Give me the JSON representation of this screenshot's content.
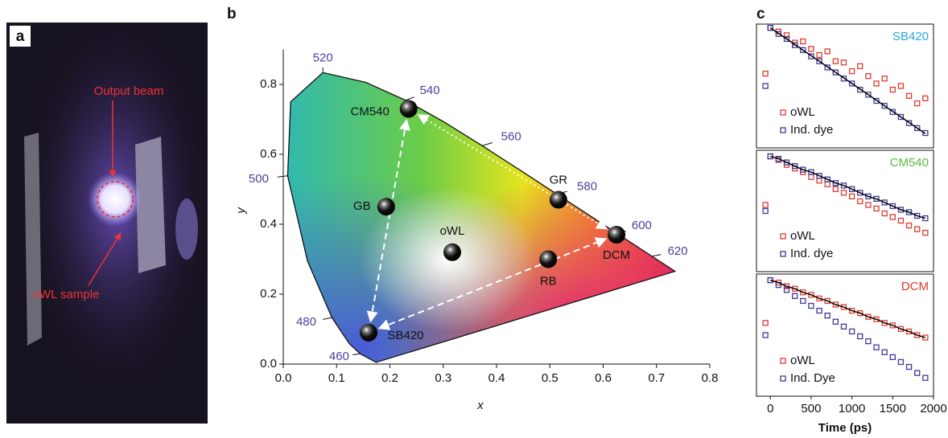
{
  "photo": {
    "panel_label": "a",
    "annotations": [
      "Output beam",
      "oWL sample"
    ]
  },
  "chart_data": [
    {
      "type": "scatter",
      "panel_label": "b",
      "xlabel": "x",
      "ylabel": "y",
      "xlim": [
        0,
        0.8
      ],
      "ylim": [
        0,
        0.9
      ],
      "xticks": [
        {
          "value": 0,
          "label": "0.0"
        },
        0.1,
        0.2,
        0.3,
        0.4,
        0.5,
        0.6,
        0.7,
        0.8
      ],
      "yticks": [
        {
          "value": 0,
          "label": "0.0"
        },
        0.2,
        0.4,
        0.6,
        0.8
      ],
      "labels": [
        "CM540",
        "GB",
        "oWL",
        "GR",
        "DCM",
        "RB",
        "SB420"
      ],
      "x": [
        0.235,
        0.193,
        0.317,
        0.516,
        0.625,
        0.497,
        0.16
      ],
      "y": [
        0.73,
        0.45,
        0.32,
        0.47,
        0.37,
        0.3,
        0.09
      ],
      "locus": {
        "x": [
          0.1741,
          0.144,
          0.1241,
          0.0913,
          0.0454,
          0.0082,
          0.0139,
          0.0743,
          0.1547,
          0.2296,
          0.3016,
          0.3731,
          0.4441,
          0.5125,
          0.5752,
          0.627,
          0.6915,
          0.7347
        ],
        "y": [
          0.005,
          0.0297,
          0.0578,
          0.1327,
          0.295,
          0.5384,
          0.7502,
          0.8338,
          0.8059,
          0.7543,
          0.6923,
          0.6245,
          0.5547,
          0.4866,
          0.4242,
          0.3725,
          0.3083,
          0.2653
        ]
      },
      "wavelengths": {
        "labels": [
          460,
          480,
          500,
          520,
          540,
          560,
          580,
          600,
          620
        ],
        "x": [
          0.144,
          0.0913,
          0.0082,
          0.0743,
          0.2296,
          0.3731,
          0.5125,
          0.627,
          0.6915
        ],
        "y": [
          0.0297,
          0.1327,
          0.5384,
          0.8338,
          0.7543,
          0.6245,
          0.4866,
          0.3725,
          0.3083
        ]
      }
    },
    {
      "type": "decay",
      "panel_label": "c",
      "label": "SB420",
      "label_color": "#29a9df",
      "xlim": [
        -170,
        2000
      ],
      "ylim": [
        0,
        1
      ],
      "x": [
        -60,
        0,
        100,
        200,
        300,
        400,
        500,
        600,
        700,
        800,
        900,
        1000,
        1100,
        1200,
        1300,
        1400,
        1500,
        1600,
        1700,
        1800,
        1900
      ],
      "series": [
        {
          "name": "oWL",
          "color": "#e03a2f",
          "values": [
            0.6,
            0.97,
            0.94,
            0.91,
            0.85,
            0.86,
            0.8,
            0.75,
            0.78,
            0.7,
            0.69,
            0.62,
            0.66,
            0.58,
            0.52,
            0.56,
            0.47,
            0.5,
            0.42,
            0.36,
            0.4
          ]
        },
        {
          "name": "Ind. dye",
          "color": "#3b3a9a",
          "values": [
            0.5,
            0.97,
            0.92,
            0.88,
            0.83,
            0.79,
            0.74,
            0.7,
            0.65,
            0.61,
            0.56,
            0.52,
            0.47,
            0.43,
            0.38,
            0.34,
            0.29,
            0.25,
            0.2,
            0.16,
            0.12
          ]
        },
        {
          "color": "#000000",
          "values": [
            null,
            0.97,
            0.925,
            0.88,
            0.835,
            0.79,
            0.745,
            0.7,
            0.655,
            0.61,
            0.565,
            0.52,
            0.475,
            0.43,
            0.385,
            0.34,
            0.295,
            0.25,
            0.205,
            0.16,
            0.115
          ]
        }
      ]
    },
    {
      "type": "decay",
      "label": "CM540",
      "label_color": "#5db946",
      "xlim": [
        -170,
        2000
      ],
      "ylim": [
        0,
        1
      ],
      "x": [
        -60,
        0,
        100,
        200,
        300,
        400,
        500,
        600,
        700,
        800,
        900,
        1000,
        1100,
        1200,
        1300,
        1400,
        1500,
        1600,
        1700,
        1800,
        1900
      ],
      "series": [
        {
          "name": "oWL",
          "color": "#e03a2f",
          "values": [
            0.55,
            0.95,
            0.92,
            0.88,
            0.85,
            0.82,
            0.78,
            0.75,
            0.72,
            0.68,
            0.65,
            0.62,
            0.58,
            0.55,
            0.52,
            0.48,
            0.45,
            0.42,
            0.38,
            0.35,
            0.32
          ]
        },
        {
          "name": "Ind. dye",
          "color": "#3b3a9a",
          "values": [
            0.5,
            0.95,
            0.93,
            0.9,
            0.87,
            0.84,
            0.82,
            0.79,
            0.76,
            0.73,
            0.71,
            0.68,
            0.65,
            0.62,
            0.6,
            0.57,
            0.54,
            0.51,
            0.49,
            0.46,
            0.44
          ]
        },
        {
          "color": "#000000",
          "values": [
            null,
            0.95,
            0.93,
            0.9,
            0.87,
            0.84,
            0.82,
            0.79,
            0.76,
            0.73,
            0.71,
            0.68,
            0.65,
            0.62,
            0.6,
            0.57,
            0.54,
            0.51,
            0.49,
            0.46,
            0.44
          ]
        }
      ]
    },
    {
      "type": "decay",
      "label": "DCM",
      "label_color": "#e03a2f",
      "xlabel": "Time (ps)",
      "xlim": [
        -170,
        2000
      ],
      "ylim": [
        0,
        1
      ],
      "xticks": [
        0,
        500,
        1000,
        1500,
        2000
      ],
      "x": [
        -60,
        0,
        100,
        200,
        300,
        400,
        500,
        600,
        700,
        800,
        900,
        1000,
        1100,
        1200,
        1300,
        1400,
        1500,
        1600,
        1700,
        1800,
        1900
      ],
      "series": [
        {
          "name": "oWL",
          "color": "#e03a2f",
          "values": [
            0.6,
            0.95,
            0.93,
            0.9,
            0.88,
            0.85,
            0.83,
            0.8,
            0.78,
            0.75,
            0.73,
            0.7,
            0.68,
            0.65,
            0.63,
            0.6,
            0.58,
            0.55,
            0.53,
            0.5,
            0.48
          ]
        },
        {
          "name": "Ind. Dye",
          "color": "#3b3a9a",
          "values": [
            0.5,
            0.95,
            0.91,
            0.87,
            0.82,
            0.78,
            0.74,
            0.7,
            0.66,
            0.61,
            0.57,
            0.53,
            0.49,
            0.45,
            0.4,
            0.36,
            0.32,
            0.28,
            0.24,
            0.19,
            0.15
          ]
        },
        {
          "color": "#000000",
          "values": [
            null,
            0.95,
            0.93,
            0.9,
            0.88,
            0.85,
            0.83,
            0.8,
            0.78,
            0.75,
            0.73,
            0.7,
            0.68,
            0.65,
            0.63,
            0.6,
            0.58,
            0.55,
            0.53,
            0.5,
            0.48
          ]
        }
      ]
    }
  ]
}
